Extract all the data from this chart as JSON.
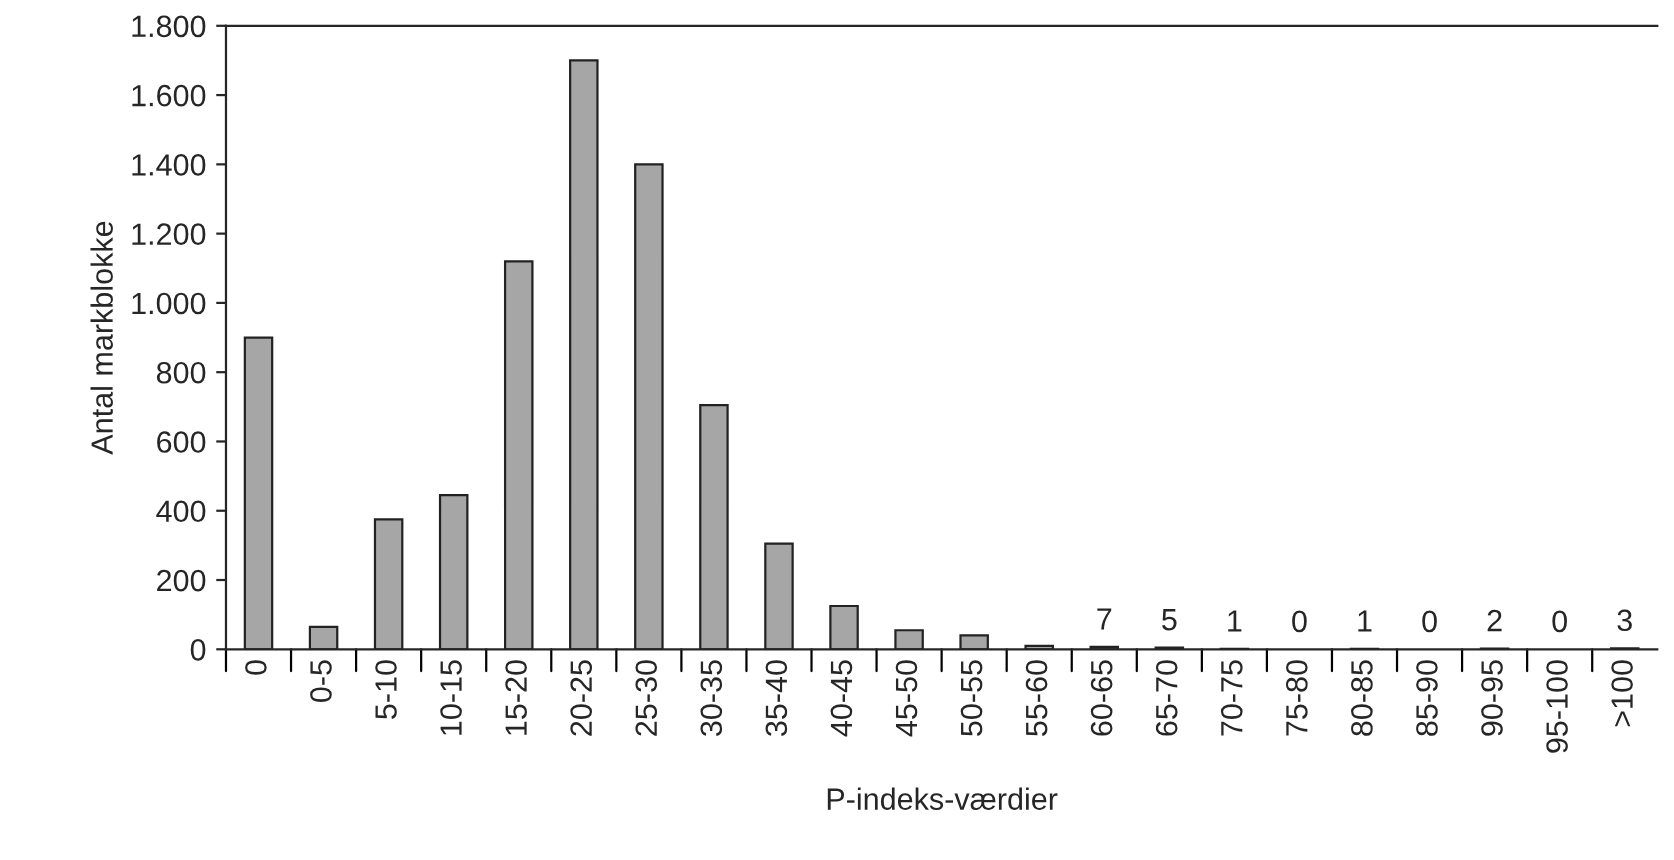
{
  "chart_data": {
    "type": "bar",
    "xlabel": "P-indeks-værdier",
    "ylabel": "Antal markblokke",
    "categories": [
      "0",
      "0-5",
      "5-10",
      "10-15",
      "15-20",
      "20-25",
      "25-30",
      "30-35",
      "35-40",
      "40-45",
      "45-50",
      "50-55",
      "55-60",
      "60-65",
      "65-70",
      "70-75",
      "75-80",
      "80-85",
      "85-90",
      "90-95",
      "95-100",
      ">100"
    ],
    "values": [
      900,
      65,
      375,
      445,
      1120,
      1700,
      1400,
      705,
      305,
      125,
      55,
      40,
      10,
      7,
      5,
      1,
      0,
      1,
      0,
      2,
      0,
      3
    ],
    "value_labels": [
      null,
      null,
      null,
      null,
      null,
      null,
      null,
      null,
      null,
      null,
      null,
      null,
      null,
      "7",
      "5",
      "1",
      "0",
      "1",
      "0",
      "2",
      "0",
      "3"
    ],
    "color": "#a6a6a6",
    "ylim": [
      0,
      1800
    ],
    "yticks": [
      0,
      200,
      400,
      600,
      800,
      {
        "value": 1000,
        "label": "1.000"
      },
      {
        "value": 1200,
        "label": "1.200"
      },
      {
        "value": 1400,
        "label": "1.400"
      },
      {
        "value": 1600,
        "label": "1.600"
      },
      {
        "value": 1800,
        "label": "1.800"
      }
    ],
    "grid": false,
    "legend": false
  }
}
